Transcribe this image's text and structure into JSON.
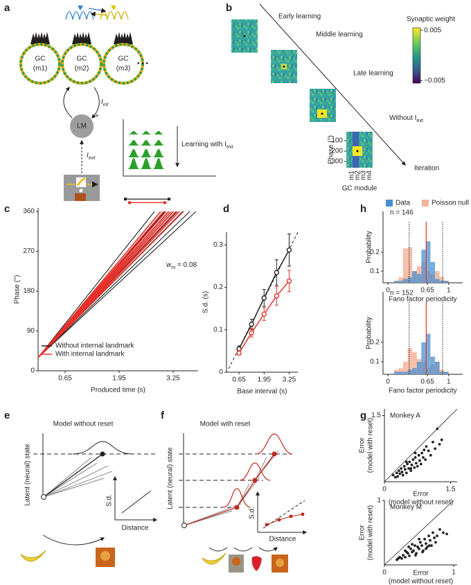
{
  "panels": [
    "a",
    "b",
    "c",
    "d",
    "e",
    "f",
    "g",
    "h"
  ],
  "diagram_a": {
    "modules": [
      {
        "name": "GC",
        "label": "(m1)"
      },
      {
        "name": "GC",
        "label": "(m2)"
      },
      {
        "name": "GC",
        "label": "(m3)"
      }
    ],
    "ellipsis": "• • •",
    "lm": "LM",
    "plus": "+",
    "i_int": [
      "I",
      "int"
    ],
    "i_ext": [
      "I",
      "ext"
    ],
    "learning": [
      "Learning with I",
      "ext"
    ]
  },
  "diagram_b": {
    "stages": [
      "Early learning",
      "Middle learning",
      "Late learning"
    ],
    "without": [
      "Without I",
      "ext"
    ],
    "iteration": "Iteration",
    "colorbar": {
      "label": "Synaptic weight",
      "lim": [
        -0.0055,
        0.0055
      ],
      "ticks": [
        0.005,
        {
          "value": -0.005,
          "label": "−0.005"
        }
      ]
    },
    "phase_label": "Phase (°)",
    "phase_ticks": [
      100,
      200,
      300
    ],
    "modules": [
      "m1",
      "m2",
      "m3",
      "m4"
    ],
    "module_label": "GC module"
  },
  "chart_data": [
    {
      "type": "line",
      "xlabel": "Produced time (s)",
      "ylabel": "Phase (°)",
      "xlim": [
        0,
        3.85
      ],
      "ylim": [
        0,
        368
      ],
      "xticks": [
        0.65,
        1.95,
        3.25
      ],
      "yticks": [
        0,
        90,
        180,
        270,
        360
      ],
      "legend": "lower left",
      "annotation": [
        "w",
        "m",
        " = 0.08"
      ],
      "series": [
        {
          "name": "Without internal landmark",
          "color": "#231f20",
          "trials": [
            {
              "x": [
                0,
                2.8
              ],
              "values": [
                30,
                360
              ]
            },
            {
              "x": [
                0,
                2.95
              ],
              "values": [
                30,
                360
              ]
            },
            {
              "x": [
                0,
                3.05
              ],
              "values": [
                30,
                360
              ]
            },
            {
              "x": [
                0,
                3.15
              ],
              "values": [
                30,
                360
              ]
            },
            {
              "x": [
                0,
                3.25
              ],
              "values": [
                30,
                360
              ]
            },
            {
              "x": [
                0,
                3.35
              ],
              "values": [
                30,
                360
              ]
            },
            {
              "x": [
                0,
                3.5
              ],
              "values": [
                30,
                360
              ]
            },
            {
              "x": [
                0,
                3.65
              ],
              "values": [
                30,
                360
              ]
            },
            {
              "x": [
                0,
                3.8
              ],
              "values": [
                30,
                360
              ]
            }
          ]
        },
        {
          "name": "With internal landmark",
          "color": "#e8302a",
          "trials": [
            {
              "x": [
                0,
                2.95
              ],
              "values": [
                30,
                360
              ]
            },
            {
              "x": [
                0,
                3.02
              ],
              "values": [
                30,
                360
              ]
            },
            {
              "x": [
                0,
                3.08
              ],
              "values": [
                30,
                360
              ]
            },
            {
              "x": [
                0,
                3.14
              ],
              "values": [
                30,
                360
              ]
            },
            {
              "x": [
                0,
                3.2
              ],
              "values": [
                30,
                360
              ]
            },
            {
              "x": [
                0,
                3.26
              ],
              "values": [
                30,
                360
              ]
            },
            {
              "x": [
                0,
                3.32
              ],
              "values": [
                30,
                360
              ]
            },
            {
              "x": [
                0,
                3.4
              ],
              "values": [
                30,
                360
              ]
            },
            {
              "x": [
                0,
                3.48
              ],
              "values": [
                30,
                360
              ]
            }
          ]
        }
      ],
      "summary": [
        {
          "color": "#231f20",
          "x": [
            2.1,
            3.15
          ],
          "y": 388
        },
        {
          "color": "#e8302a",
          "x": [
            2.2,
            3.05
          ],
          "y": 380
        }
      ]
    },
    {
      "type": "errorbar",
      "xlabel": "Base interval (s)",
      "ylabel": "S.d. (s)",
      "xlim": [
        0,
        3.7
      ],
      "ylim": [
        0,
        0.33
      ],
      "xticks": [
        0.65,
        1.95,
        3.25
      ],
      "yticks": [
        0,
        0.1,
        0.2,
        0.3
      ],
      "x": [
        0.65,
        1.3,
        1.95,
        2.6,
        3.25
      ],
      "series": [
        {
          "color": "#231f20",
          "values": [
            0.055,
            0.113,
            0.175,
            0.235,
            0.288
          ],
          "errors": [
            0.007,
            0.012,
            0.02,
            0.03,
            0.038
          ]
        },
        {
          "color": "#e8302a",
          "values": [
            0.045,
            0.093,
            0.137,
            0.18,
            0.215
          ],
          "errors": [
            0.005,
            0.01,
            0.015,
            0.022,
            0.025
          ]
        }
      ]
    },
    {
      "type": "histogram",
      "xlabel": "Fano factor periodicity",
      "ylabel": "Probability",
      "log_y": true,
      "xlim": [
        -0.08,
        1.23
      ],
      "ylim": [
        0.065,
        0.9
      ],
      "xticks": [
        0,
        0.65,
        1
      ],
      "yticks": [
        0.1,
        0.2
      ],
      "annotation": "n = 146",
      "legend": "above",
      "bins": [
        0.1,
        0.175,
        0.25,
        0.325,
        0.4,
        0.475,
        0.55,
        0.625,
        0.7,
        0.775,
        0.85,
        0.925,
        1.0
      ],
      "series": [
        {
          "name": "Poisson null",
          "color": "#f4b49c",
          "values": [
            0.07,
            0.08,
            0.23,
            0.24,
            0.1,
            0.12,
            0.14,
            0.1,
            0.09,
            0.1,
            0.08,
            0.07
          ]
        },
        {
          "name": "Data",
          "color": "#4a90d0",
          "values": [
            0.07,
            0.07,
            0.075,
            0.08,
            0.1,
            0.09,
            0.22,
            0.3,
            0.14,
            0.075,
            0.07,
            0.07
          ]
        }
      ],
      "quantiles": [
        0.35,
        0.9
      ],
      "mean": 0.63,
      "mean_color": "#e8302a"
    },
    {
      "type": "histogram",
      "xlabel": "Fano factor periodicity",
      "ylabel": "Probability",
      "log_y": true,
      "xlim": [
        -0.08,
        1.23
      ],
      "ylim": [
        0.064,
        1.2
      ],
      "xticks": [
        0,
        0.65,
        1
      ],
      "yticks": [
        0.1,
        0.2
      ],
      "annotation": "n = 152",
      "bins": [
        0.1,
        0.175,
        0.25,
        0.325,
        0.4,
        0.475,
        0.55,
        0.625,
        0.7,
        0.775,
        0.85,
        0.925,
        1.0
      ],
      "series": [
        {
          "color": "#f4b49c",
          "values": [
            0.075,
            0.08,
            0.1,
            0.16,
            0.14,
            0.11,
            0.1,
            0.08,
            0.09,
            0.1,
            0.075,
            0.07
          ]
        },
        {
          "color": "#4a90d0",
          "values": [
            0.07,
            0.07,
            0.07,
            0.075,
            0.08,
            0.1,
            0.2,
            0.27,
            0.12,
            0.1,
            0.07,
            0.07
          ]
        }
      ],
      "quantiles": [
        0.35,
        0.9
      ],
      "mean": 0.63,
      "mean_color": "#e8302a"
    },
    {
      "type": "scatter",
      "xlabel_lines": [
        "Error",
        "(model without reset)"
      ],
      "ylabel_lines": [
        "Error",
        "(model with reset)"
      ],
      "annotation": "Monkey A",
      "xlim": [
        0,
        1.65
      ],
      "ylim": [
        0,
        1.65
      ],
      "xticks": [
        0,
        1.5
      ],
      "yticks": [
        1.5
      ],
      "x": [
        0.2,
        0.25,
        0.28,
        0.3,
        0.33,
        0.35,
        0.38,
        0.4,
        0.42,
        0.45,
        0.47,
        0.5,
        0.52,
        0.55,
        0.57,
        0.6,
        0.62,
        0.65,
        0.68,
        0.7,
        0.72,
        0.75,
        0.78,
        0.8,
        0.83,
        0.85,
        0.88,
        0.9,
        0.93,
        0.95,
        1.0,
        1.05,
        1.1,
        1.15,
        1.2,
        1.25,
        1.3,
        0.5,
        0.6,
        0.7
      ],
      "values": [
        0.15,
        0.1,
        0.2,
        0.12,
        0.25,
        0.18,
        0.3,
        0.22,
        0.15,
        0.35,
        0.28,
        0.2,
        0.4,
        0.3,
        0.45,
        0.25,
        0.38,
        0.5,
        0.32,
        0.55,
        0.42,
        0.35,
        0.6,
        0.48,
        0.4,
        0.65,
        0.55,
        0.72,
        0.5,
        0.8,
        0.7,
        0.6,
        0.9,
        0.75,
        1.2,
        0.85,
        0.95,
        0.45,
        0.3,
        0.65
      ]
    },
    {
      "type": "scatter",
      "xlabel_lines": [
        "Error",
        "(model without reset)"
      ],
      "ylabel_lines": [
        "Error",
        "(model with reset)"
      ],
      "annotation": "Monkey M",
      "xlim": [
        0,
        1.05
      ],
      "ylim": [
        0,
        1
      ],
      "xticks": [
        0,
        1
      ],
      "yticks": [
        1
      ],
      "x": [
        0.18,
        0.2,
        0.22,
        0.25,
        0.27,
        0.3,
        0.32,
        0.34,
        0.36,
        0.38,
        0.4,
        0.42,
        0.44,
        0.46,
        0.48,
        0.5,
        0.52,
        0.54,
        0.56,
        0.58,
        0.6,
        0.62,
        0.64,
        0.66,
        0.68,
        0.7,
        0.72,
        0.74,
        0.76,
        0.8,
        0.85,
        0.9,
        0.3,
        0.4,
        0.5,
        0.6,
        0.45,
        0.55,
        0.65,
        0.35
      ],
      "values": [
        0.08,
        0.1,
        0.12,
        0.1,
        0.15,
        0.12,
        0.2,
        0.18,
        0.14,
        0.25,
        0.2,
        0.22,
        0.3,
        0.18,
        0.28,
        0.25,
        0.35,
        0.3,
        0.22,
        0.4,
        0.33,
        0.28,
        0.45,
        0.38,
        0.3,
        0.5,
        0.42,
        0.35,
        0.45,
        0.55,
        0.5,
        0.48,
        0.22,
        0.32,
        0.4,
        0.25,
        0.15,
        0.2,
        0.3,
        0.28
      ]
    }
  ],
  "diagram_e": {
    "title": "Model without reset",
    "ylabel": "Latent (neural) state",
    "inset_y": "S.d.",
    "inset_x": "Distance"
  },
  "diagram_f": {
    "title": "Model with reset",
    "ylabel": "Latent (neural) state",
    "inset_y": "S.d.",
    "inset_x": "Distance"
  }
}
